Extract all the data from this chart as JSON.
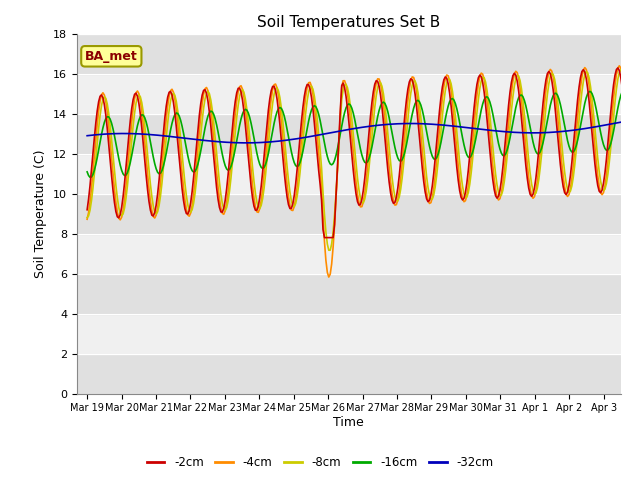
{
  "title": "Soil Temperatures Set B",
  "xlabel": "Time",
  "ylabel": "Soil Temperature (C)",
  "ylim": [
    0,
    18
  ],
  "yticks": [
    0,
    2,
    4,
    6,
    8,
    10,
    12,
    14,
    16,
    18
  ],
  "annotation_text": "BA_met",
  "annotation_color": "#8B0000",
  "annotation_bg": "#FFFF99",
  "annotation_border": "#999900",
  "line_colors": {
    "-2cm": "#CC0000",
    "-4cm": "#FF8C00",
    "-8cm": "#DDDD00",
    "-16cm": "#00AA00",
    "-32cm": "#0000BB"
  },
  "legend_labels": [
    "-2cm",
    "-4cm",
    "-8cm",
    "-16cm",
    "-32cm"
  ],
  "fig_bg": "#FFFFFF",
  "plot_bg": "#FFFFFF",
  "band_dark": "#E0E0E0",
  "band_light": "#F0F0F0",
  "xticklabels": [
    "Mar 19",
    "Mar 20",
    "Mar 21",
    "Mar 22",
    "Mar 23",
    "Mar 24",
    "Mar 25",
    "Mar 26",
    "Mar 27",
    "Mar 28",
    "Mar 29",
    "Mar 30",
    "Mar 31",
    "Apr 1",
    "Apr 2",
    "Apr 3"
  ]
}
